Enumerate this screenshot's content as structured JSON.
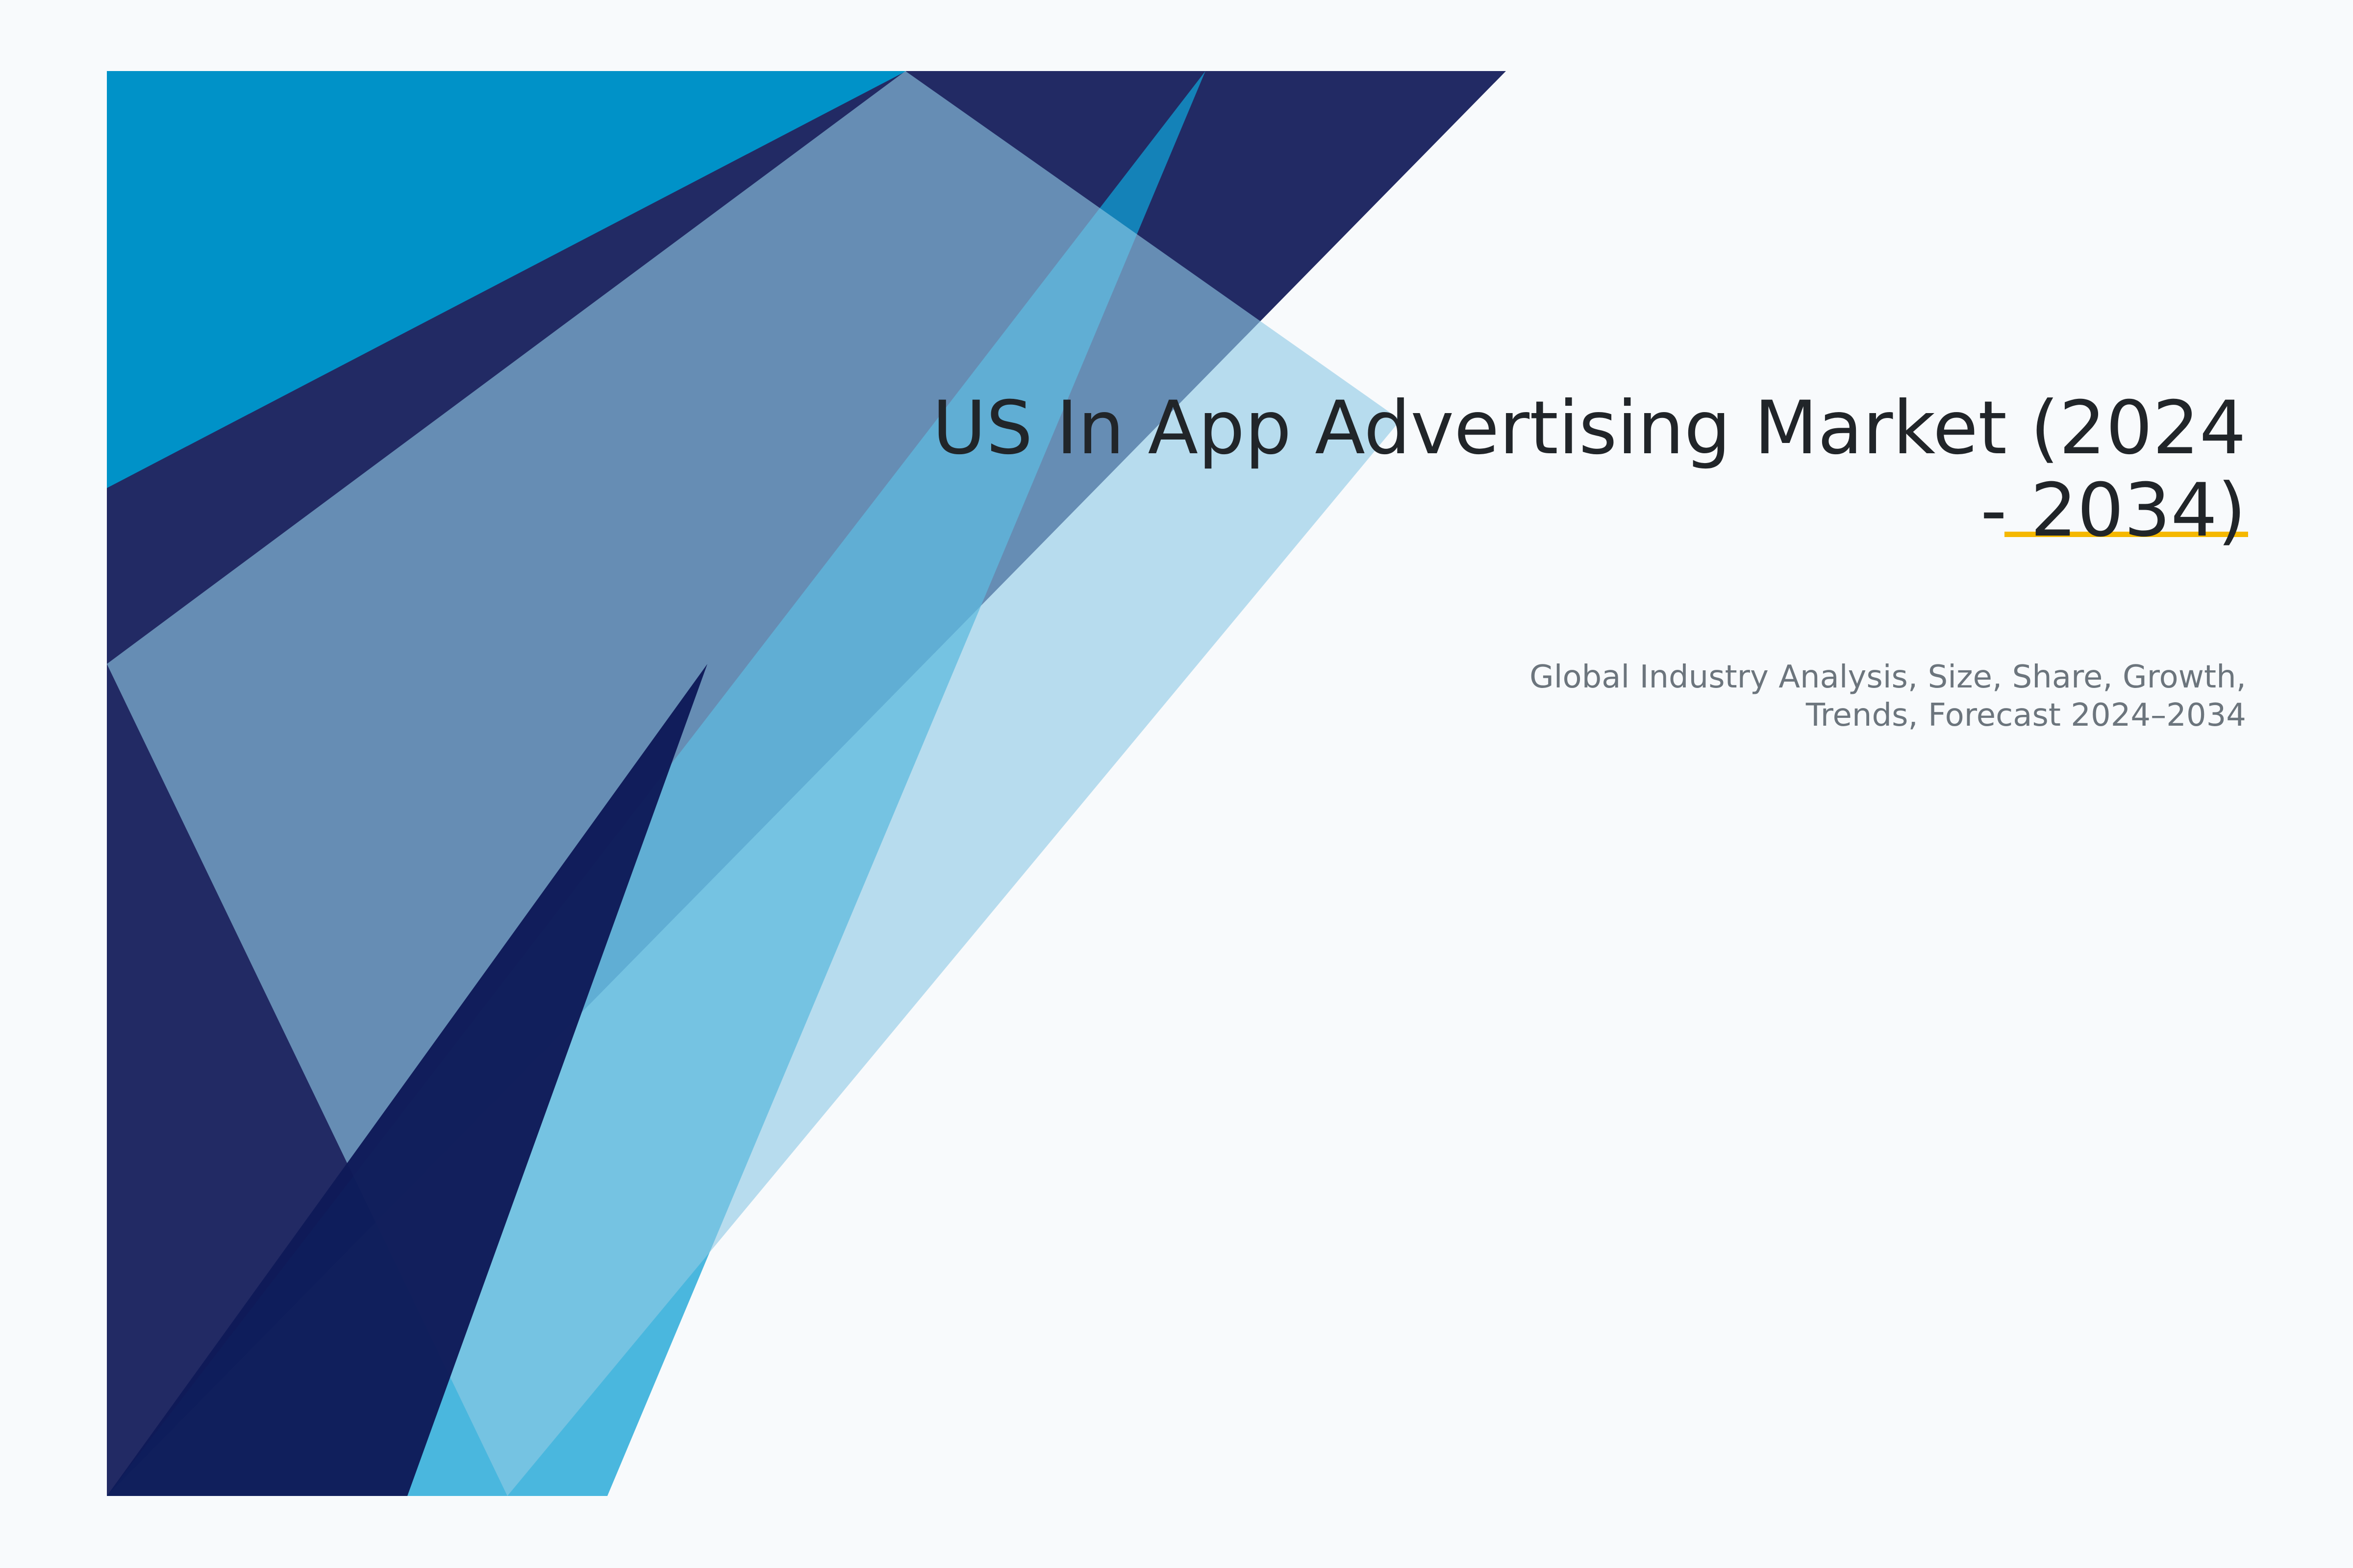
{
  "cover": {
    "title": "US In App Advertising Market (2024 - 2034)",
    "subtitle": "Global Industry Analysis, Size, Share, Growth, Trends, Forecast 2024–2034"
  },
  "colors": {
    "background": "#f8fafc",
    "navy": "#222a64",
    "cyan": "#0092c8",
    "medium_blue": "#10a0d4",
    "light_blue": "#8fcae5",
    "deep_navy": "#0e1a58",
    "accent": "#f5b800",
    "title_text": "#212529",
    "subtitle_text": "#6c757d"
  }
}
